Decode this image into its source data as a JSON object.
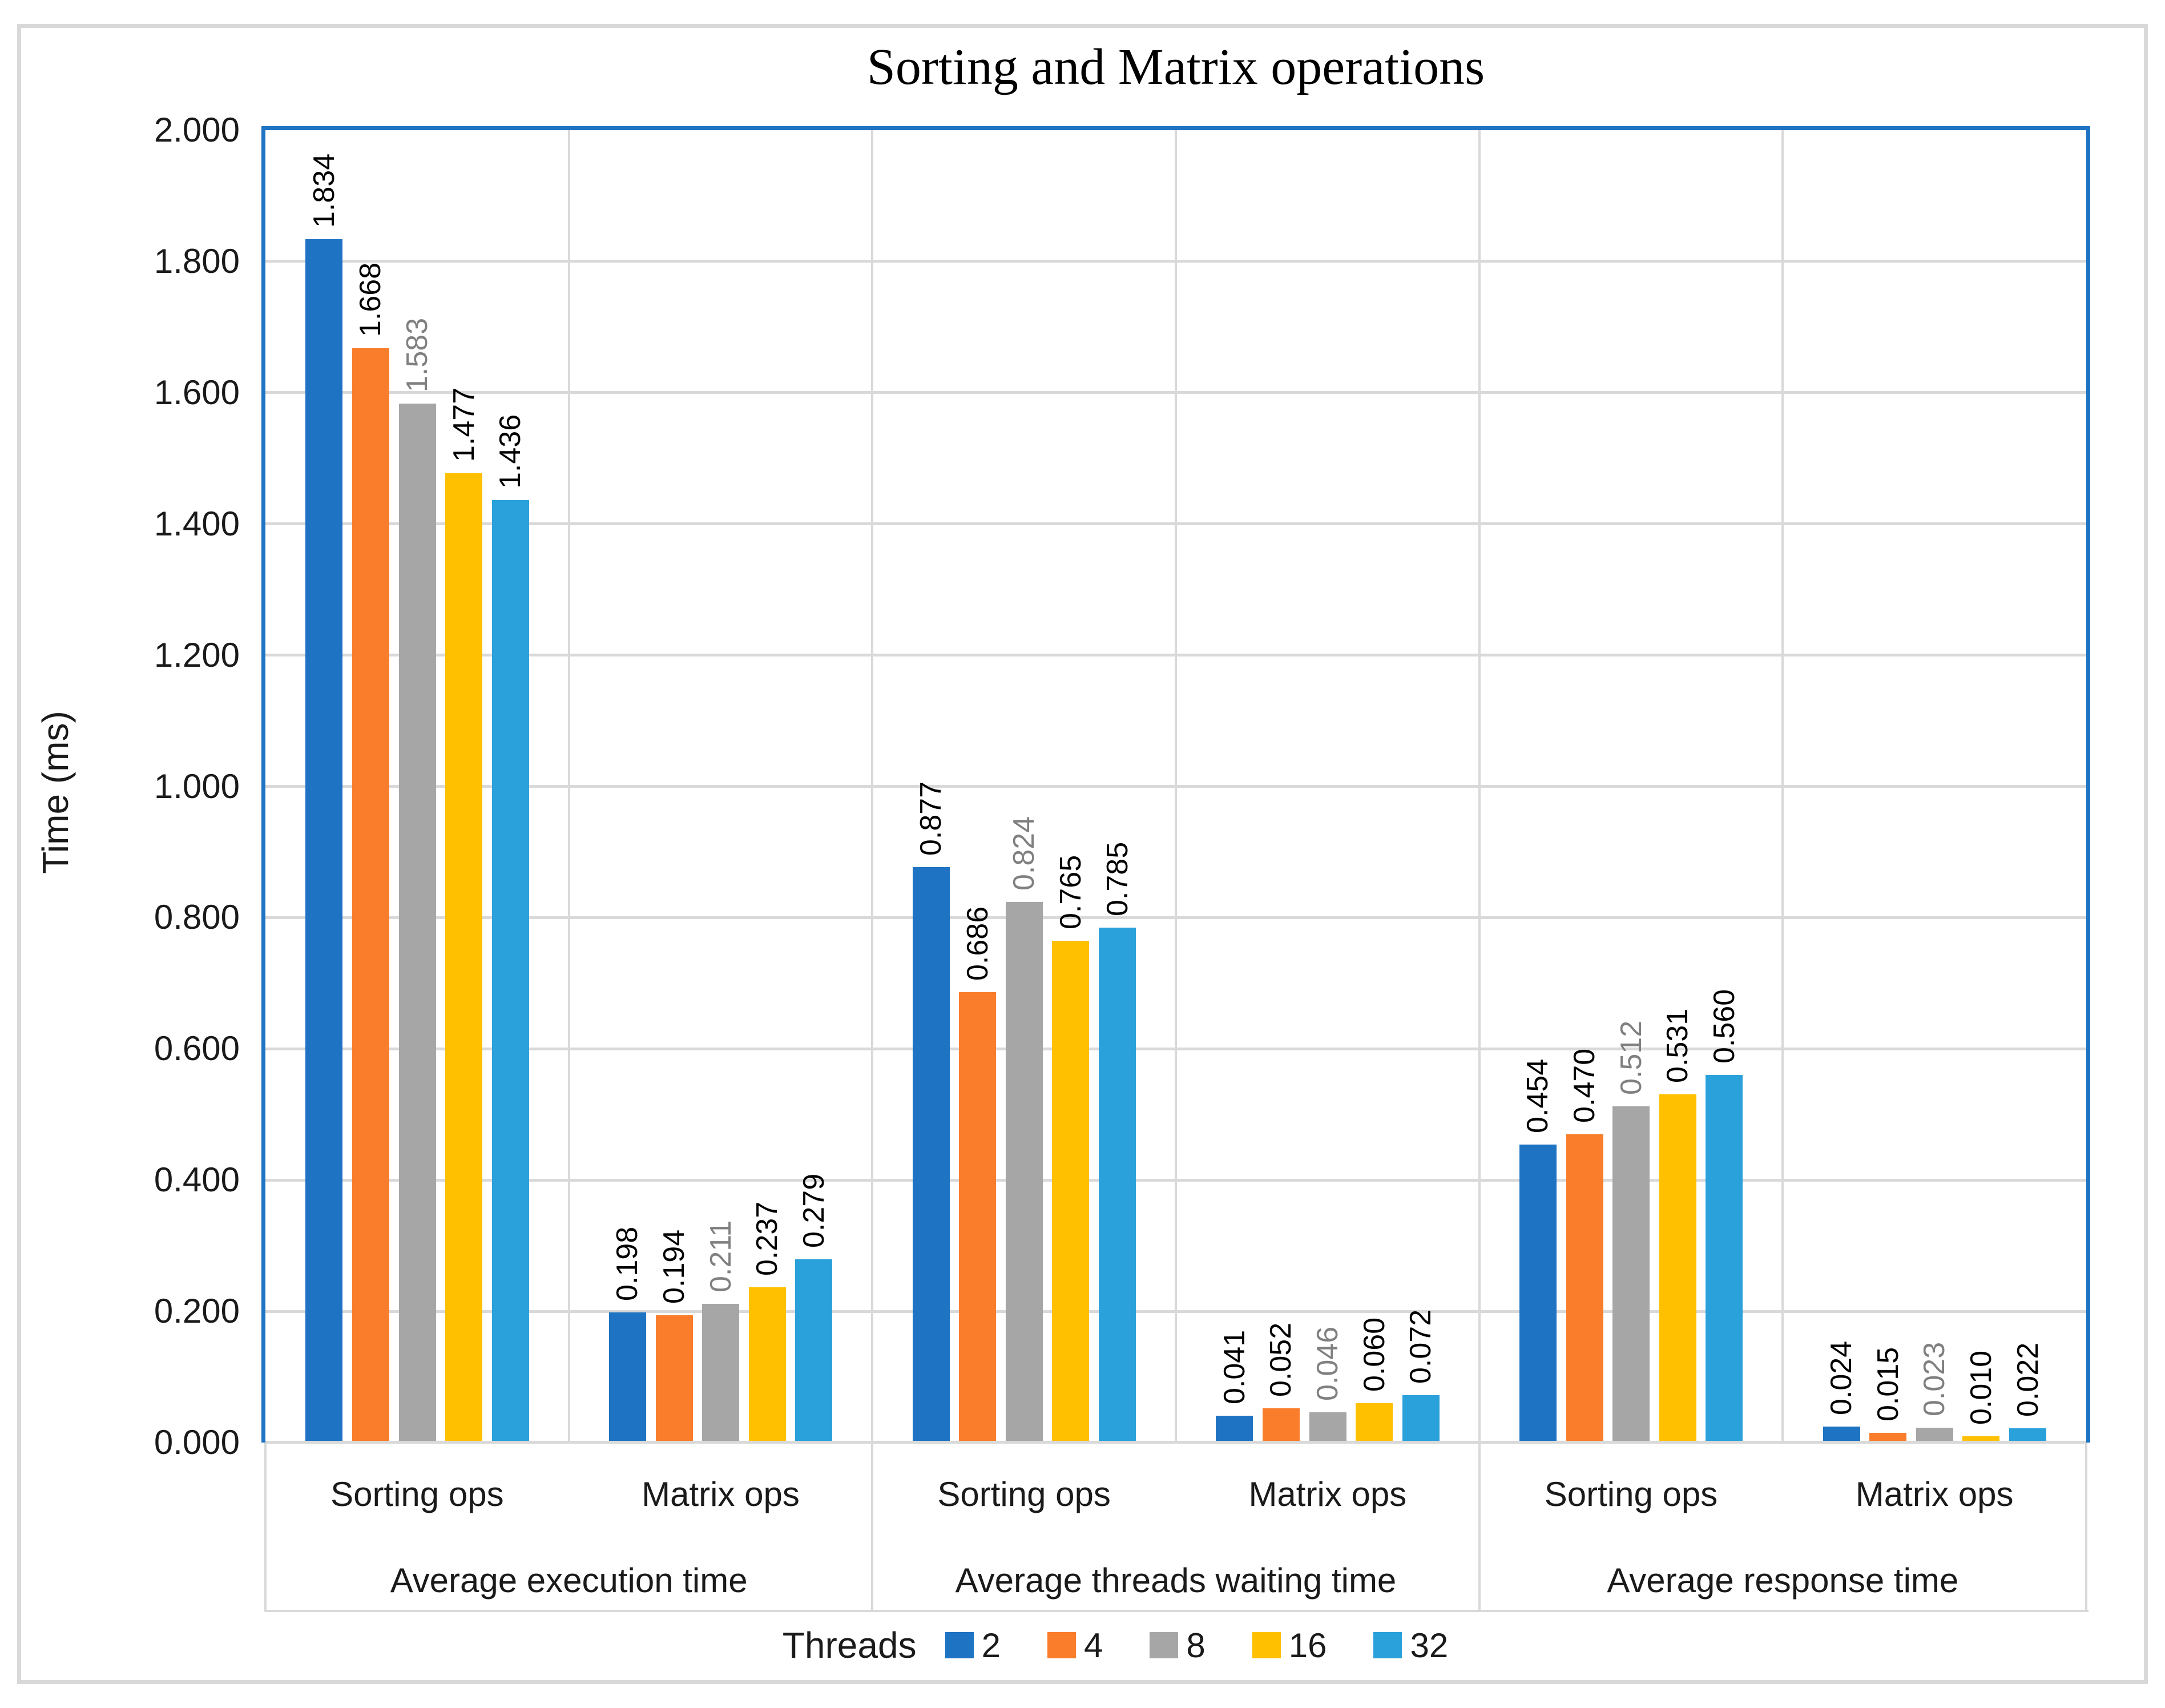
{
  "chart_data": {
    "type": "bar",
    "title": "Sorting and Matrix operations",
    "ylabel": "Time (ms)",
    "xlabel": "",
    "ylim": [
      0,
      2.0
    ],
    "y_ticks": [
      "0.000",
      "0.200",
      "0.400",
      "0.600",
      "0.800",
      "1.000",
      "1.200",
      "1.400",
      "1.600",
      "1.800",
      "2.000"
    ],
    "grid": true,
    "legend_position": "bottom",
    "legend_title": "Threads",
    "groups": [
      {
        "label": "Average execution time",
        "categories": [
          "Sorting ops",
          "Matrix ops"
        ]
      },
      {
        "label": "Average threads waiting time",
        "categories": [
          "Sorting ops",
          "Matrix ops"
        ]
      },
      {
        "label": "Average response time",
        "categories": [
          "Sorting ops",
          "Matrix ops"
        ]
      }
    ],
    "categories_flat": [
      "Sorting ops",
      "Matrix ops",
      "Sorting ops",
      "Matrix ops",
      "Sorting ops",
      "Matrix ops"
    ],
    "series": [
      {
        "name": "2",
        "color": "#1e73c2",
        "label_color": "#000000",
        "values": [
          1.834,
          0.198,
          0.877,
          0.041,
          0.454,
          0.024
        ]
      },
      {
        "name": "4",
        "color": "#f97d2b",
        "label_color": "#000000",
        "values": [
          1.668,
          0.194,
          0.686,
          0.052,
          0.47,
          0.015
        ]
      },
      {
        "name": "8",
        "color": "#a6a6a6",
        "label_color": "#808080",
        "values": [
          1.583,
          0.211,
          0.824,
          0.046,
          0.512,
          0.023
        ]
      },
      {
        "name": "16",
        "color": "#ffc000",
        "label_color": "#000000",
        "values": [
          1.477,
          0.237,
          0.765,
          0.06,
          0.531,
          0.01
        ]
      },
      {
        "name": "32",
        "color": "#2ba1db",
        "label_color": "#000000",
        "values": [
          1.436,
          0.279,
          0.785,
          0.072,
          0.56,
          0.022
        ]
      }
    ],
    "value_format_decimals": 3,
    "colors": {
      "plot_border": "#1e73c2",
      "gridline": "#d9d9d9",
      "frame_border": "#d9d9d9",
      "background": "#ffffff"
    }
  }
}
